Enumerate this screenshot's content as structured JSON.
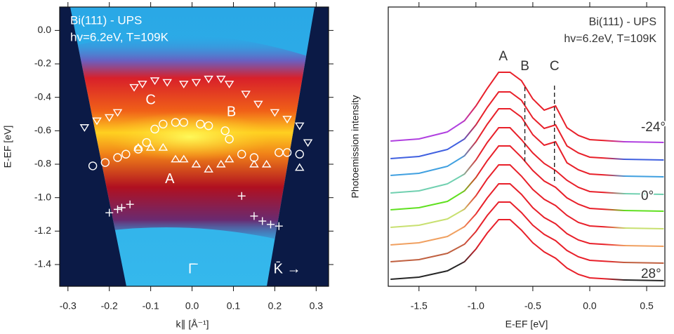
{
  "chart_data": [
    {
      "type": "scatter",
      "title": "Bi(111) - UPS",
      "subtitle": "hv=6.2eV, T=109K",
      "xlabel": "k∥ [Å⁻¹]",
      "ylabel": "E-EF [eV]",
      "xlim": [
        -0.32,
        0.33
      ],
      "ylim": [
        -1.53,
        0.14
      ],
      "xticks": [
        -0.3,
        -0.2,
        -0.1,
        {
          "value": 0,
          "label": "0.0"
        },
        0.1,
        0.2,
        0.3
      ],
      "yticks": [
        {
          "value": 0,
          "label": "0.0"
        },
        -0.2,
        -0.4,
        -0.6,
        -0.8,
        {
          "value": -1,
          "label": "-1.0"
        },
        -1.2,
        -1.4
      ],
      "series": [
        {
          "marker": "triangle-down",
          "color": "#ffffff",
          "x": [
            -0.26,
            -0.23,
            -0.2,
            -0.18,
            -0.14,
            -0.12,
            -0.09,
            -0.06,
            -0.02,
            0.01,
            0.04,
            0.07,
            0.09,
            0.13,
            0.16,
            0.2,
            0.23,
            0.26,
            0.28
          ],
          "values": [
            -0.58,
            -0.54,
            -0.52,
            -0.49,
            -0.34,
            -0.32,
            -0.3,
            -0.31,
            -0.32,
            -0.31,
            -0.29,
            -0.29,
            -0.32,
            -0.38,
            -0.44,
            -0.49,
            -0.53,
            -0.57,
            -0.67
          ]
        },
        {
          "marker": "circle",
          "color": "#ffffff",
          "x": [
            -0.24,
            -0.21,
            -0.18,
            -0.16,
            -0.13,
            -0.11,
            -0.09,
            -0.07,
            -0.04,
            -0.02,
            0.02,
            0.04,
            0.08,
            0.09,
            0.12,
            0.15,
            0.21,
            0.23,
            0.26
          ],
          "values": [
            -0.81,
            -0.79,
            -0.76,
            -0.74,
            -0.71,
            -0.67,
            -0.59,
            -0.56,
            -0.55,
            -0.55,
            -0.56,
            -0.57,
            -0.6,
            -0.65,
            -0.74,
            -0.76,
            -0.73,
            -0.73,
            -0.74
          ]
        },
        {
          "marker": "triangle-up",
          "color": "#ffffff",
          "x": [
            -0.13,
            -0.1,
            -0.07,
            -0.04,
            -0.02,
            0.01,
            0.04,
            0.07,
            0.09,
            0.15,
            0.18,
            0.26
          ],
          "values": [
            -0.7,
            -0.7,
            -0.7,
            -0.77,
            -0.77,
            -0.8,
            -0.83,
            -0.8,
            -0.77,
            -0.8,
            -0.8,
            -0.82
          ]
        },
        {
          "marker": "plus",
          "color": "#ffffff",
          "x": [
            -0.2,
            -0.18,
            -0.17,
            -0.15,
            0.12,
            0.15,
            0.17,
            0.19,
            0.21
          ],
          "values": [
            -1.09,
            -1.07,
            -1.06,
            -1.04,
            -0.99,
            -1.11,
            -1.14,
            -1.16,
            -1.17
          ]
        }
      ],
      "annotations": [
        {
          "text": "A",
          "x": -0.054,
          "y": -0.89
        },
        {
          "text": "B",
          "x": 0.095,
          "y": -0.49
        },
        {
          "text": "C",
          "x": -0.1,
          "y": -0.42
        },
        {
          "text": "Γ̄",
          "x": 0.0,
          "y": -1.43
        },
        {
          "text": "K̄ →",
          "x": 0.23,
          "y": -1.43
        }
      ]
    },
    {
      "type": "line",
      "title": "Bi(111) - UPS",
      "subtitle": "hv=6.2eV, T=109K",
      "xlabel": "E-EF [eV]",
      "ylabel": "Photoemission intensity",
      "xlim": [
        -1.77,
        0.66
      ],
      "ylim": [
        0,
        39.8
      ],
      "xticks": [
        -1.5,
        {
          "value": -1,
          "label": "-1.0"
        },
        -0.5,
        {
          "value": 0,
          "label": "0.0"
        },
        0.5
      ],
      "peak_color": "#e8202a",
      "x": [
        -1.75,
        -1.5,
        -1.25,
        -1.1,
        -1.0,
        -0.9,
        -0.8,
        -0.7,
        -0.6,
        -0.5,
        -0.4,
        -0.3,
        -0.2,
        -0.1,
        0.0,
        0.3,
        0.65
      ],
      "series": [
        {
          "color": "#262626",
          "values": [
            1.0,
            1.3,
            2.2,
            3.5,
            5.3,
            7.6,
            9.5,
            9.5,
            8.0,
            6.2,
            4.9,
            4.0,
            2.6,
            1.7,
            1.2,
            0.9,
            0.8
          ]
        },
        {
          "color": "#c06040",
          "values": [
            3.5,
            3.8,
            4.7,
            6.0,
            7.8,
            10.1,
            12.0,
            12.0,
            10.5,
            8.7,
            7.4,
            6.5,
            5.1,
            4.2,
            3.7,
            3.4,
            3.3
          ]
        },
        {
          "color": "#f0a060",
          "values": [
            5.9,
            6.2,
            7.1,
            8.5,
            10.3,
            12.6,
            14.6,
            14.6,
            13.1,
            11.2,
            9.8,
            8.9,
            7.5,
            6.6,
            6.1,
            5.8,
            5.7
          ]
        },
        {
          "color": "#c8e070",
          "values": [
            8.4,
            8.7,
            9.6,
            11.0,
            12.9,
            15.3,
            17.3,
            17.3,
            15.7,
            13.8,
            12.4,
            11.5,
            10.1,
            9.1,
            8.6,
            8.3,
            8.2
          ]
        },
        {
          "color": "#60e020",
          "values": [
            10.9,
            11.2,
            12.1,
            13.6,
            15.5,
            17.9,
            20.0,
            20.0,
            18.4,
            16.5,
            15.0,
            14.1,
            12.6,
            11.7,
            11.1,
            10.8,
            10.7
          ]
        },
        {
          "color": "#70d0b0",
          "values": [
            13.3,
            13.6,
            14.6,
            16.0,
            18.0,
            20.5,
            22.6,
            22.6,
            20.9,
            19.0,
            17.5,
            16.5,
            15.1,
            14.1,
            13.5,
            13.2,
            13.1
          ]
        },
        {
          "color": "#40a0e0",
          "values": [
            15.8,
            16.1,
            17.1,
            18.6,
            20.6,
            23.1,
            25.3,
            25.3,
            24.1,
            21.6,
            20.1,
            20.6,
            17.6,
            16.6,
            16.0,
            15.7,
            15.6
          ]
        },
        {
          "color": "#4060e0",
          "values": [
            18.2,
            18.5,
            19.5,
            21.0,
            23.0,
            25.5,
            27.7,
            27.7,
            26.5,
            24.0,
            22.5,
            23.0,
            20.0,
            19.0,
            18.4,
            18.1,
            18.0
          ]
        },
        {
          "color": "#b040e0",
          "values": [
            20.7,
            21.0,
            22.0,
            23.6,
            25.7,
            28.2,
            30.5,
            30.5,
            29.3,
            26.7,
            25.1,
            25.7,
            22.6,
            21.5,
            20.9,
            20.6,
            20.5
          ]
        }
      ],
      "vlines": [
        {
          "x": -0.57,
          "y1": 17.8,
          "y2": 28.8
        },
        {
          "x": -0.31,
          "y1": 15.0,
          "y2": 28.8
        }
      ],
      "annotations": [
        {
          "text": "A",
          "x": -0.76,
          "y": 32.7
        },
        {
          "text": "B",
          "x": -0.57,
          "y": 31.3
        },
        {
          "text": "C",
          "x": -0.31,
          "y": 31.3
        },
        {
          "text": "-24°",
          "x": 0.45,
          "y": 22.6
        },
        {
          "text": "0°",
          "x": 0.45,
          "y": 12.8
        },
        {
          "text": "28°",
          "x": 0.45,
          "y": 1.7
        }
      ]
    }
  ]
}
